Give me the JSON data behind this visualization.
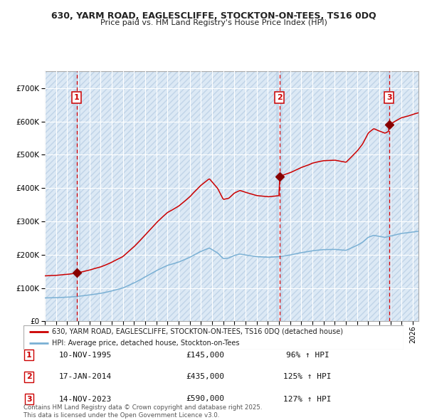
{
  "title_line1": "630, YARM ROAD, EAGLESCLIFFE, STOCKTON-ON-TEES, TS16 0DQ",
  "title_line2": "Price paid vs. HM Land Registry's House Price Index (HPI)",
  "legend_line1": "630, YARM ROAD, EAGLESCLIFFE, STOCKTON-ON-TEES, TS16 0DQ (detached house)",
  "legend_line2": "HPI: Average price, detached house, Stockton-on-Tees",
  "footer": "Contains HM Land Registry data © Crown copyright and database right 2025.\nThis data is licensed under the Open Government Licence v3.0.",
  "sales": [
    {
      "num": 1,
      "date": "10-NOV-1995",
      "price": 145000,
      "hpi_pct": "96% ↑ HPI",
      "date_x": 1995.86
    },
    {
      "num": 2,
      "date": "17-JAN-2014",
      "price": 435000,
      "hpi_pct": "125% ↑ HPI",
      "date_x": 2014.04
    },
    {
      "num": 3,
      "date": "14-NOV-2023",
      "price": 590000,
      "hpi_pct": "127% ↑ HPI",
      "date_x": 2023.86
    }
  ],
  "red_line_color": "#cc0000",
  "blue_line_color": "#7ab0d4",
  "bg_color": "#dce9f5",
  "hatch_edge_color": "#c0d4e8",
  "grid_color": "#ffffff",
  "dashed_line_color": "#dd0000",
  "sale_marker_color": "#880000",
  "ylim": [
    0,
    750000
  ],
  "xlim_start": 1993.0,
  "xlim_end": 2026.5,
  "hpi_waypoints": [
    [
      1993.0,
      70000
    ],
    [
      1994.0,
      71000
    ],
    [
      1995.0,
      72500
    ],
    [
      1996.0,
      75000
    ],
    [
      1997.0,
      79000
    ],
    [
      1998.0,
      84000
    ],
    [
      1999.0,
      91000
    ],
    [
      2000.0,
      100000
    ],
    [
      2001.0,
      115000
    ],
    [
      2002.0,
      133000
    ],
    [
      2003.0,
      152000
    ],
    [
      2004.0,
      168000
    ],
    [
      2005.0,
      178000
    ],
    [
      2006.0,
      192000
    ],
    [
      2007.0,
      210000
    ],
    [
      2007.75,
      220000
    ],
    [
      2008.5,
      205000
    ],
    [
      2009.0,
      188000
    ],
    [
      2009.5,
      190000
    ],
    [
      2010.0,
      198000
    ],
    [
      2010.5,
      202000
    ],
    [
      2011.0,
      199000
    ],
    [
      2012.0,
      194000
    ],
    [
      2013.0,
      192000
    ],
    [
      2014.0,
      194000
    ],
    [
      2015.0,
      199000
    ],
    [
      2016.0,
      206000
    ],
    [
      2017.0,
      212000
    ],
    [
      2018.0,
      215000
    ],
    [
      2019.0,
      216000
    ],
    [
      2020.0,
      213000
    ],
    [
      2021.0,
      228000
    ],
    [
      2021.5,
      238000
    ],
    [
      2022.0,
      252000
    ],
    [
      2022.5,
      258000
    ],
    [
      2023.0,
      255000
    ],
    [
      2023.5,
      252000
    ],
    [
      2024.0,
      256000
    ],
    [
      2025.0,
      264000
    ],
    [
      2026.0,
      268000
    ],
    [
      2026.5,
      270000
    ]
  ]
}
